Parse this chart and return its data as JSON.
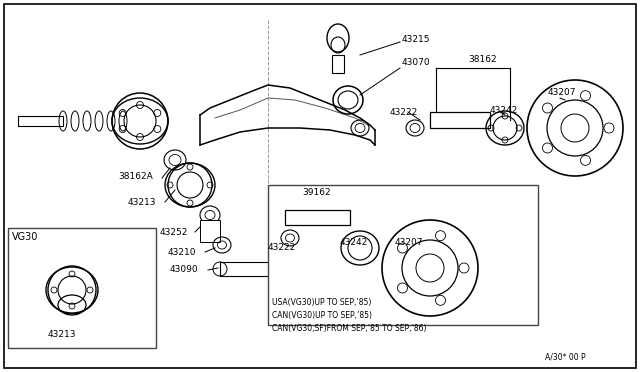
{
  "bg_color": "#ffffff",
  "border_color": "#000000",
  "line_color": "#000000",
  "fig_width": 6.4,
  "fig_height": 3.72,
  "dpi": 100,
  "note_lines": [
    "USA(VG30)UP TO SEP,’85)",
    "CAN(VG30)UP TO SEP,’85)",
    "CAN(VG30,SF)FROM SEP,’85 TO SEP,’86)"
  ],
  "ref_code": "A/30* 00 P"
}
